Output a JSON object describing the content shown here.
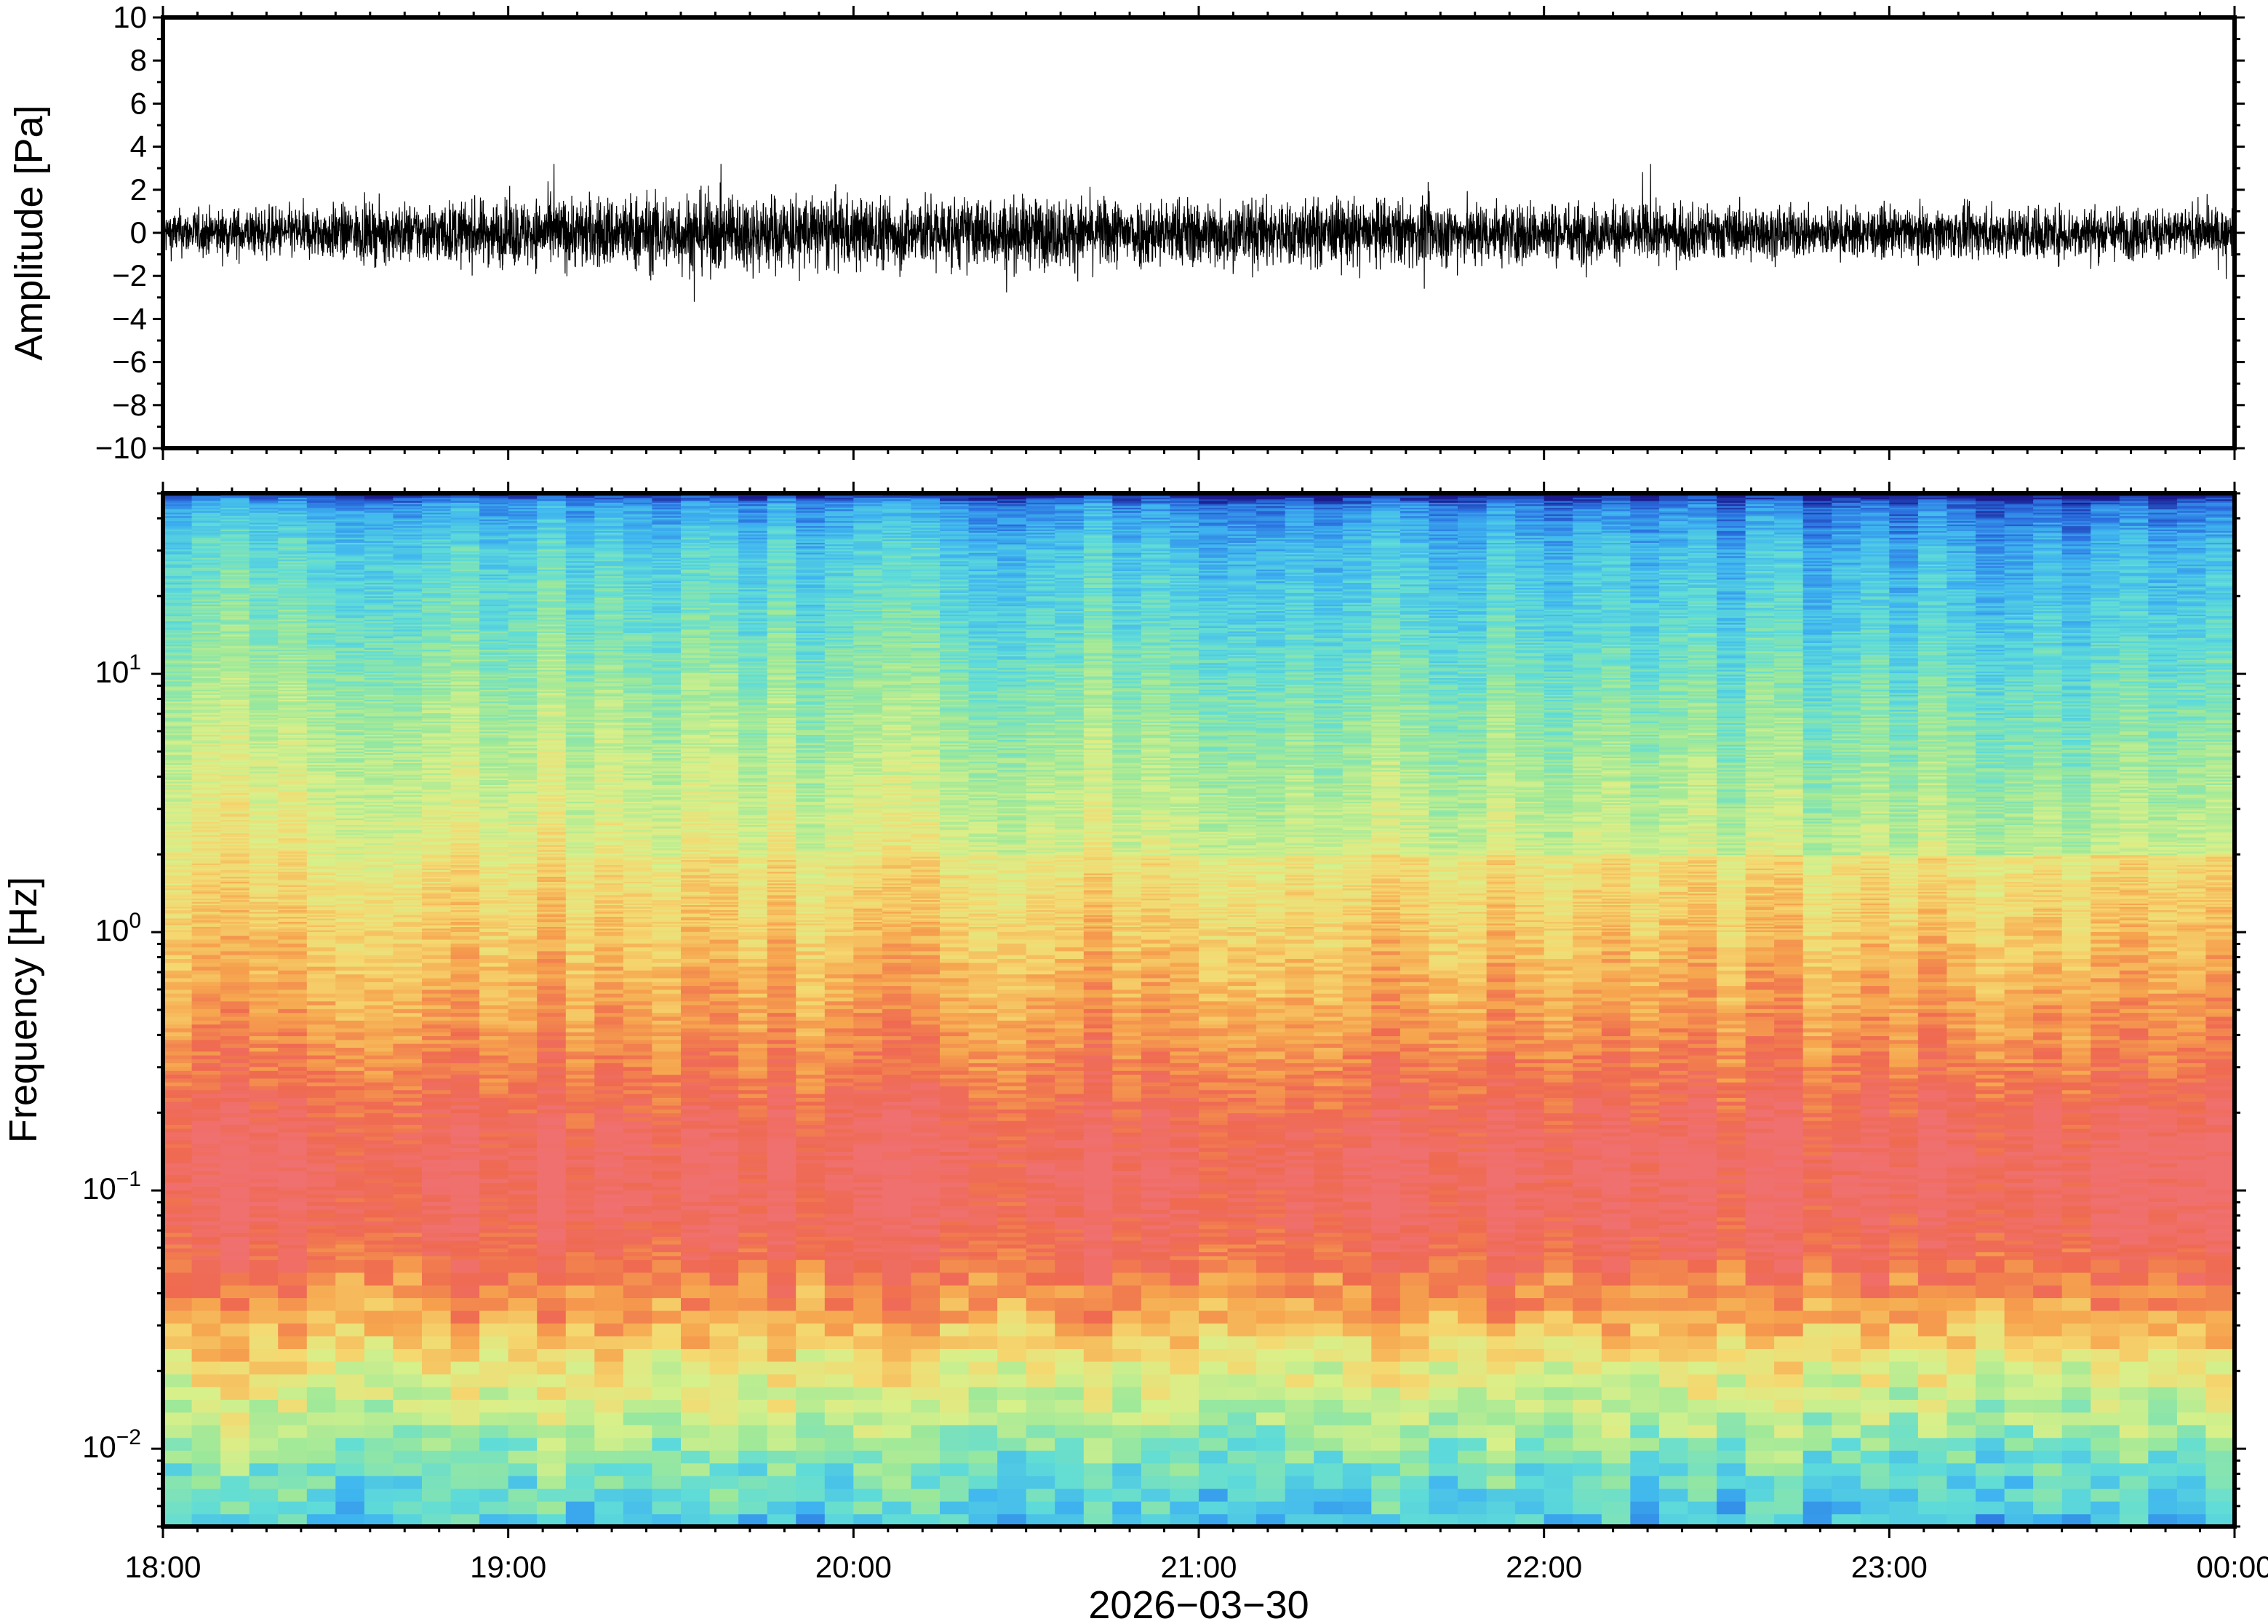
{
  "chart_data": [
    {
      "type": "line",
      "panel": "waveform",
      "ylabel": "Amplitude [Pa]",
      "ylim": [
        -10,
        10
      ],
      "yticks": [
        10,
        8,
        6,
        4,
        2,
        0,
        -2,
        -4,
        -6,
        -8,
        -10
      ],
      "ytick_labels": [
        "10",
        "8",
        "6",
        "4",
        "2",
        "0",
        "−2",
        "−4",
        "−6",
        "−8",
        "−10"
      ],
      "x_range": [
        "18:00",
        "00:00"
      ],
      "series": [
        {
          "trace_summary": "noise centered on 0 Pa, typical envelope about ±1 Pa, occasional spikes to about ±3 Pa",
          "envelope_hours": [
            0,
            0.5,
            1,
            1.5,
            2,
            2.5,
            3,
            3.5,
            4,
            4.5,
            5,
            5.5,
            6
          ],
          "envelope_pa": [
            1.2,
            1.5,
            1.8,
            2.2,
            2.0,
            1.9,
            1.9,
            1.8,
            1.7,
            1.5,
            1.3,
            1.5,
            1.3
          ]
        }
      ],
      "color": "#000000"
    },
    {
      "type": "heatmap",
      "panel": "spectrogram",
      "ylabel": "Frequency [Hz]",
      "yscale": "log",
      "ylim": [
        0.005,
        50
      ],
      "yticks": [
        0.01,
        0.1,
        1,
        10
      ],
      "ytick_labels": [
        {
          "base": "10",
          "exp": "−2"
        },
        {
          "base": "10",
          "exp": "−1"
        },
        {
          "base": "10",
          "exp": "0"
        },
        {
          "base": "10",
          "exp": "1"
        }
      ],
      "xticks": [
        "18:00",
        "19:00",
        "20:00",
        "21:00",
        "22:00",
        "23:00",
        "00:00"
      ],
      "xlabel": "2026−03−30",
      "colormap": [
        "#1a1a8c",
        "#2a6fe0",
        "#3fb5f0",
        "#5fdcd8",
        "#9ce89a",
        "#d8f08a",
        "#f5d870",
        "#f6a44e",
        "#ef6a50",
        "#f07070"
      ],
      "power_profile": {
        "freq_hz": [
          0.005,
          0.008,
          0.012,
          0.02,
          0.03,
          0.05,
          0.08,
          0.13,
          0.2,
          0.3,
          0.5,
          1,
          2,
          4,
          8,
          15,
          30,
          45,
          50
        ],
        "level": [
          0.3,
          0.38,
          0.5,
          0.62,
          0.75,
          0.88,
          0.95,
          0.97,
          0.92,
          0.85,
          0.78,
          0.7,
          0.62,
          0.55,
          0.48,
          0.4,
          0.33,
          0.22,
          0.05
        ]
      }
    }
  ]
}
